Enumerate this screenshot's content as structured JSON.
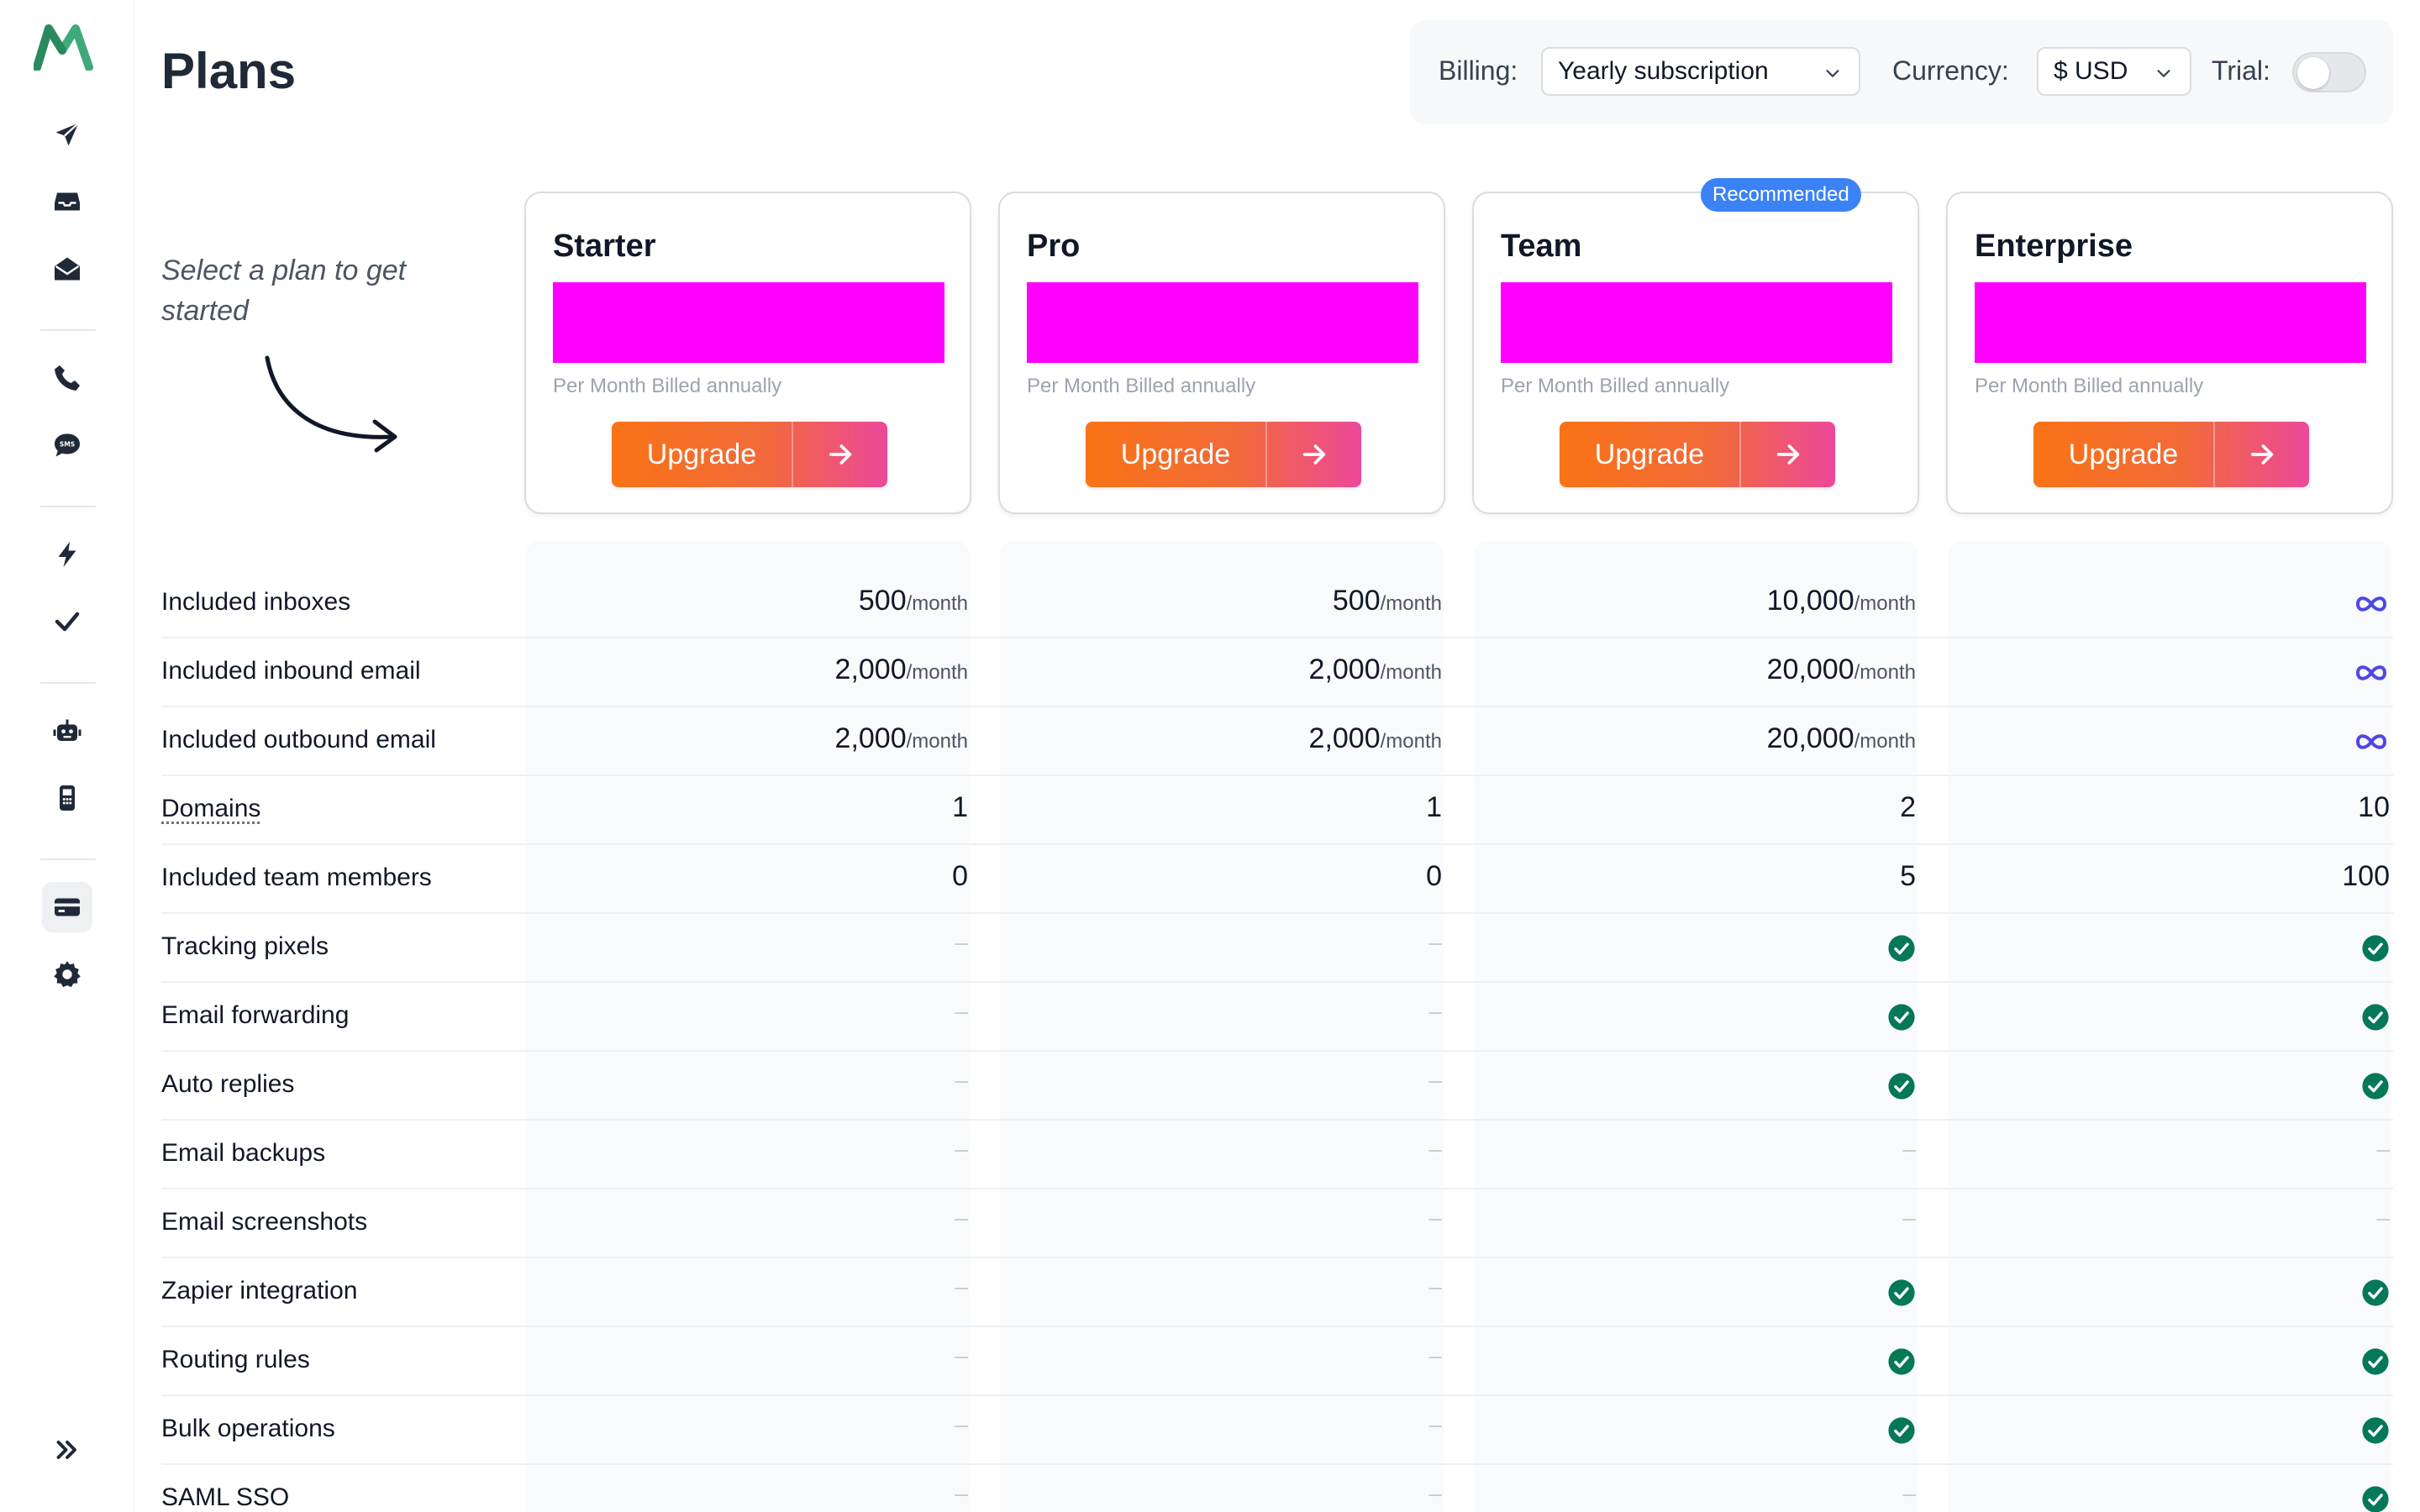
{
  "page": {
    "title": "Plans"
  },
  "sidebar": {
    "icons": [
      "logo-icon",
      "send-icon",
      "inbox-icon",
      "envelope-open-icon",
      "phone-icon",
      "sms-icon",
      "bolt-icon",
      "check-icon",
      "robot-icon",
      "mobile-icon",
      "credit-card-icon",
      "gear-icon",
      "expand-icon"
    ],
    "active": "credit-card-icon"
  },
  "controls": {
    "billing_label": "Billing:",
    "billing_value": "Yearly subscription",
    "currency_label": "Currency:",
    "currency_value": "$ USD",
    "trial_label": "Trial:",
    "trial_on": false
  },
  "intro": {
    "text": "Select a plan to get started"
  },
  "plans": [
    {
      "name": "Starter",
      "billed": "Per Month Billed annually",
      "button": "Upgrade"
    },
    {
      "name": "Pro",
      "billed": "Per Month Billed annually",
      "button": "Upgrade"
    },
    {
      "name": "Team",
      "billed": "Per Month Billed annually",
      "button": "Upgrade",
      "badge": "Recommended"
    },
    {
      "name": "Enterprise",
      "billed": "Per Month Billed annually",
      "button": "Upgrade"
    }
  ],
  "unit": "/month",
  "dash": "–",
  "features": [
    {
      "label": "Included inboxes",
      "values": [
        "500",
        "500",
        "10,000",
        "infinity"
      ],
      "unit": true
    },
    {
      "label": "Included inbound email",
      "values": [
        "2,000",
        "2,000",
        "20,000",
        "infinity"
      ],
      "unit": true
    },
    {
      "label": "Included outbound email",
      "values": [
        "2,000",
        "2,000",
        "20,000",
        "infinity"
      ],
      "unit": true
    },
    {
      "label": "Domains",
      "values": [
        "1",
        "1",
        "2",
        "10"
      ],
      "dotted": true
    },
    {
      "label": "Included team members",
      "values": [
        "0",
        "0",
        "5",
        "100"
      ]
    },
    {
      "label": "Tracking pixels",
      "values": [
        "-",
        "-",
        "check",
        "check"
      ]
    },
    {
      "label": "Email forwarding",
      "values": [
        "-",
        "-",
        "check",
        "check"
      ]
    },
    {
      "label": "Auto replies",
      "values": [
        "-",
        "-",
        "check",
        "check"
      ]
    },
    {
      "label": "Email backups",
      "values": [
        "-",
        "-",
        "-",
        "-"
      ]
    },
    {
      "label": "Email screenshots",
      "values": [
        "-",
        "-",
        "-",
        "-"
      ]
    },
    {
      "label": "Zapier integration",
      "values": [
        "-",
        "-",
        "check",
        "check"
      ]
    },
    {
      "label": "Routing rules",
      "values": [
        "-",
        "-",
        "check",
        "check"
      ]
    },
    {
      "label": "Bulk operations",
      "values": [
        "-",
        "-",
        "check",
        "check"
      ]
    },
    {
      "label": "SAML SSO",
      "values": [
        "-",
        "-",
        "-",
        "check"
      ]
    }
  ],
  "colors": {
    "accent_start": "#f97316",
    "accent_end": "#ec4899",
    "check": "#047857",
    "infinity": "#4f46e5",
    "badge": "#3b82f6",
    "price_placeholder": "#ff00ff"
  }
}
